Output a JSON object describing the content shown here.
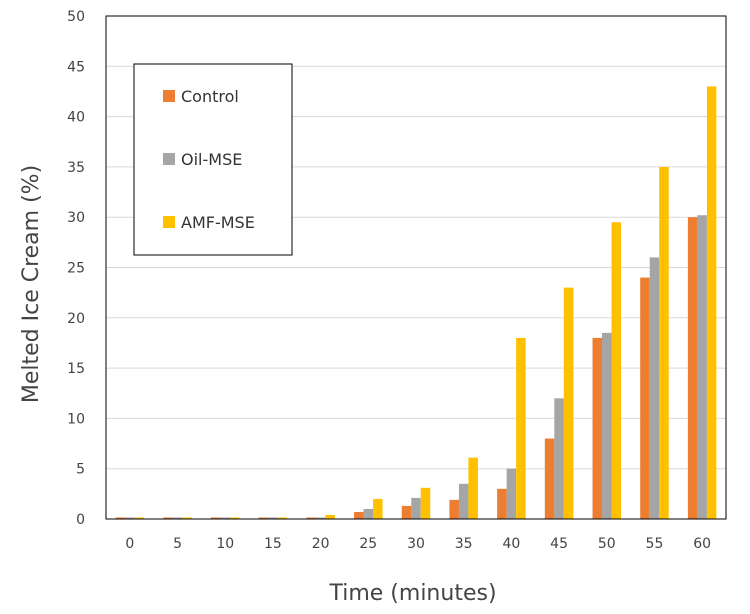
{
  "chart_data": {
    "type": "bar",
    "title": "",
    "xlabel": "Time (minutes)",
    "ylabel": "Melted Ice Cream (%)",
    "ylim": [
      0,
      50
    ],
    "yticks": [
      0,
      5,
      10,
      15,
      20,
      25,
      30,
      35,
      40,
      45,
      50
    ],
    "categories": [
      "0",
      "5",
      "10",
      "15",
      "20",
      "25",
      "30",
      "35",
      "40",
      "45",
      "50",
      "55",
      "60"
    ],
    "grid": true,
    "legend_position": "top-left",
    "series": [
      {
        "name": "Control",
        "color": "#ED7D31",
        "values": [
          0,
          0,
          0,
          0,
          0,
          0.7,
          1.3,
          1.9,
          3.0,
          8.0,
          18.0,
          24.0,
          30.0
        ]
      },
      {
        "name": "Oil-MSE",
        "color": "#A5A5A5",
        "values": [
          0,
          0,
          0,
          0,
          0,
          1.0,
          2.1,
          3.5,
          5.0,
          12.0,
          18.5,
          26.0,
          30.2
        ]
      },
      {
        "name": "AMF-MSE",
        "color": "#FFC000",
        "values": [
          0,
          0,
          0,
          0,
          0.4,
          2.0,
          3.1,
          6.1,
          18.0,
          23.0,
          29.5,
          35.0,
          43.0
        ]
      }
    ]
  }
}
